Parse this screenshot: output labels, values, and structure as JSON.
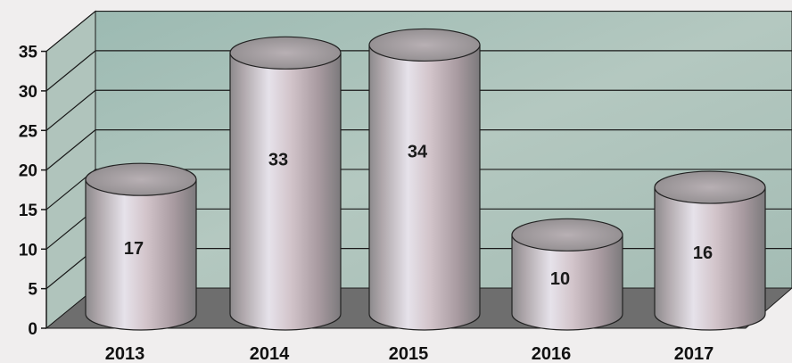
{
  "chart_data": {
    "type": "bar",
    "style": "3d-cylinder",
    "categories": [
      "2013",
      "2014",
      "2015",
      "2016",
      "2017"
    ],
    "values": [
      17,
      33,
      34,
      10,
      16
    ],
    "data_labels": [
      "17",
      "33",
      "34",
      "10",
      "16"
    ],
    "y_ticks": [
      "0",
      "5",
      "10",
      "15",
      "20",
      "25",
      "30",
      "35"
    ],
    "ylim": [
      0,
      35
    ],
    "grid": true,
    "legend": "none",
    "title": "",
    "xlabel": "",
    "ylabel": ""
  },
  "colors": {
    "back_wall": "#a8c0b8",
    "side_wall": "#b0c4bc",
    "floor": "#6e6e6e",
    "grid_line": "#1a1a1a",
    "cylinder_light": "#e0d8e4",
    "cylinder_mid": "#c4b0b8",
    "cylinder_dark": "#8a8a8a",
    "cylinder_top": "#a8a0a4"
  }
}
